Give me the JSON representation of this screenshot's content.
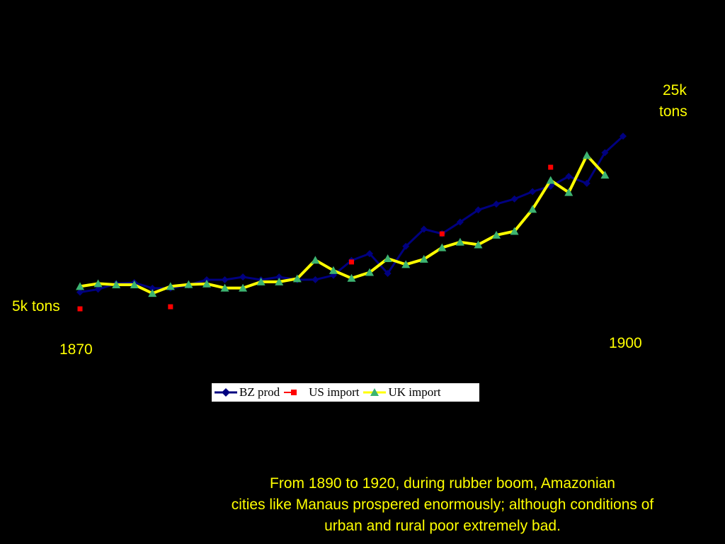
{
  "annotations": {
    "top_label_line1": "25k",
    "top_label_line2": "tons",
    "bottom_label": "5k tons",
    "start_year": "1870",
    "end_year": "1900"
  },
  "caption": {
    "line1": "From 1890 to 1920, during rubber boom, Amazonian",
    "line2": "cities like Manaus prospered enormously; although conditions of",
    "line3": "urban and rural poor extremely bad."
  },
  "colors": {
    "background": "#000000",
    "text": "#ffff00",
    "bz_prod": "#000080",
    "us_import": "#ff0000",
    "uk_import_line": "#ffff00",
    "uk_import_marker": "#3cb371"
  },
  "chart_data": {
    "type": "line",
    "x": [
      1870,
      1871,
      1872,
      1873,
      1874,
      1875,
      1876,
      1877,
      1878,
      1879,
      1880,
      1881,
      1882,
      1883,
      1884,
      1885,
      1886,
      1887,
      1888,
      1889,
      1890,
      1891,
      1892,
      1893,
      1894,
      1895,
      1896,
      1897,
      1898,
      1899,
      1900
    ],
    "ylim": [
      5000,
      25000
    ],
    "series": [
      {
        "name": "BZ prod",
        "marker": "diamond",
        "values": [
          6600,
          6880,
          7420,
          7520,
          6980,
          6980,
          7280,
          7790,
          7790,
          8060,
          7790,
          8060,
          7790,
          7800,
          8220,
          9650,
          10300,
          8400,
          11000,
          12650,
          12220,
          13330,
          14500,
          15060,
          15550,
          16260,
          16780,
          17720,
          17050,
          20000,
          21580
        ]
      },
      {
        "name": "US import",
        "marker": "square",
        "values": [
          5000,
          null,
          null,
          null,
          null,
          5200,
          null,
          null,
          null,
          null,
          null,
          null,
          null,
          null,
          null,
          9500,
          null,
          null,
          null,
          null,
          12200,
          null,
          null,
          null,
          null,
          null,
          18600,
          null,
          null,
          null,
          null
        ]
      },
      {
        "name": "UK import",
        "marker": "triangle",
        "values": [
          7150,
          7420,
          7310,
          7310,
          6490,
          7150,
          7340,
          7400,
          7000,
          7000,
          7590,
          7590,
          7900,
          9680,
          8690,
          7940,
          8500,
          9830,
          9260,
          9770,
          10880,
          11410,
          11160,
          12080,
          12450,
          14570,
          17350,
          16180,
          19740,
          17850,
          null
        ]
      }
    ]
  },
  "legend": {
    "bz_prod": "BZ prod",
    "us_import": "US import",
    "uk_import": "UK import"
  }
}
